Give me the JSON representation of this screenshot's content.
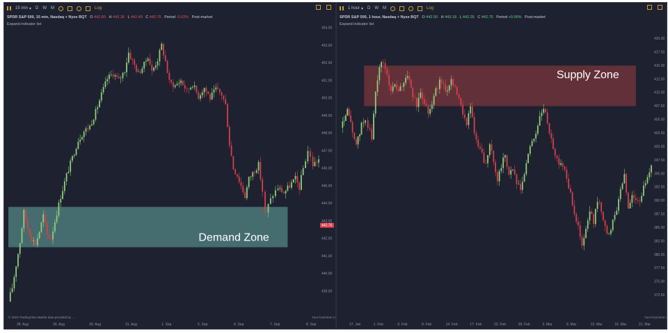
{
  "chart_data": [
    {
      "type": "candlestick",
      "title": "SPDR S&P 500, 15 min, Nasdaq + Nyse BQT",
      "toolbar": {
        "interval": "15 min",
        "periods": [
          "D",
          "W",
          "M"
        ],
        "log": "Log"
      },
      "ohlc": {
        "o_label": "O",
        "o": "442.80",
        "h_label": "H",
        "h": "443.18",
        "l_label": "L",
        "l": "442.49",
        "c_label": "C",
        "c": "442.75",
        "period_label": "Period",
        "period": "-0.02%",
        "session": "Post-market"
      },
      "expand_label": "Expand indicator list",
      "ylim": [
        438,
        454
      ],
      "y_ticks": [
        "454.00",
        "453.00",
        "452.00",
        "451.00",
        "450.00",
        "449.00",
        "448.00",
        "447.00",
        "446.00",
        "445.00",
        "444.00",
        "443.00",
        "442.00",
        "441.00",
        "440.00",
        "439.00"
      ],
      "x_ticks": [
        "28. Aug",
        "29. Aug",
        "30. Aug",
        "31. Aug",
        "1. Sep",
        "5. Sep",
        "6. Sep",
        "7. Sep",
        "8. Sep"
      ],
      "last_price": "442.75",
      "zone": {
        "label": "Demand Zone",
        "y_low": 441.5,
        "y_high": 443.8,
        "x_start": 0.0,
        "x_end": 7.2,
        "color": "#5f9e9a"
      },
      "footer_left": "© 2023 TradingView Market data provided by ...",
      "footer_right": "Your local time zone",
      "path": [
        [
          0,
          438.4
        ],
        [
          0.1,
          439.2
        ],
        [
          0.2,
          440.5
        ],
        [
          0.3,
          441.8
        ],
        [
          0.4,
          443.5
        ],
        [
          0.5,
          442.6
        ],
        [
          0.6,
          442.0
        ],
        [
          0.7,
          441.7
        ],
        [
          0.8,
          442.4
        ],
        [
          0.9,
          443.3
        ],
        [
          1.0,
          442.2
        ],
        [
          1.1,
          442.0
        ],
        [
          1.2,
          443.0
        ],
        [
          1.35,
          444.4
        ],
        [
          1.5,
          445.6
        ],
        [
          1.65,
          446.6
        ],
        [
          1.8,
          447.6
        ],
        [
          1.95,
          448.1
        ],
        [
          2.1,
          448.4
        ],
        [
          2.25,
          449.2
        ],
        [
          2.4,
          450.2
        ],
        [
          2.55,
          451.1
        ],
        [
          2.7,
          451.4
        ],
        [
          2.85,
          451.0
        ],
        [
          3.0,
          451.6
        ],
        [
          3.1,
          452.6
        ],
        [
          3.2,
          452.1
        ],
        [
          3.35,
          451.4
        ],
        [
          3.5,
          451.9
        ],
        [
          3.6,
          452.4
        ],
        [
          3.7,
          451.5
        ],
        [
          3.85,
          452.2
        ],
        [
          3.95,
          453.0
        ],
        [
          4.05,
          452.1
        ],
        [
          4.15,
          450.9
        ],
        [
          4.3,
          450.7
        ],
        [
          4.45,
          451.0
        ],
        [
          4.6,
          450.4
        ],
        [
          4.75,
          450.8
        ],
        [
          4.9,
          450.1
        ],
        [
          5.05,
          450.6
        ],
        [
          5.2,
          450.0
        ],
        [
          5.35,
          450.5
        ],
        [
          5.5,
          450.2
        ],
        [
          5.6,
          449.6
        ],
        [
          5.7,
          447.4
        ],
        [
          5.8,
          446.0
        ],
        [
          5.9,
          445.6
        ],
        [
          6.0,
          445.0
        ],
        [
          6.1,
          444.4
        ],
        [
          6.2,
          445.4
        ],
        [
          6.35,
          445.9
        ],
        [
          6.45,
          446.2
        ],
        [
          6.55,
          444.7
        ],
        [
          6.62,
          443.4
        ],
        [
          6.7,
          443.9
        ],
        [
          6.82,
          444.5
        ],
        [
          6.95,
          444.9
        ],
        [
          7.1,
          444.6
        ],
        [
          7.25,
          445.0
        ],
        [
          7.4,
          445.4
        ],
        [
          7.5,
          444.9
        ],
        [
          7.6,
          446.0
        ],
        [
          7.72,
          447.0
        ],
        [
          7.85,
          446.2
        ],
        [
          8.0,
          446.5
        ]
      ]
    },
    {
      "type": "candlestick",
      "title": "SPDR S&P 500, 1 hour, Nasdaq + Nyse BQT",
      "toolbar": {
        "interval": "1 hour",
        "periods": [
          "D",
          "W",
          "M"
        ],
        "log": "Log"
      },
      "ohlc": {
        "o_label": "O",
        "o": "442.50",
        "h_label": "H",
        "h": "443.18",
        "l_label": "L",
        "l": "442.26",
        "c_label": "C",
        "c": "442.75",
        "period_label": "Period",
        "period": "+0.06%",
        "session": "Post-market"
      },
      "expand_label": "Expand indicator list",
      "ylim": [
        370,
        422
      ],
      "y_ticks": [
        "420.00",
        "417.50",
        "415.00",
        "412.50",
        "410.00",
        "407.50",
        "405.00",
        "402.50",
        "400.00",
        "397.50",
        "395.00",
        "392.50",
        "390.00",
        "387.50",
        "385.00",
        "382.50",
        "380.00",
        "377.50",
        "375.00",
        "372.50"
      ],
      "x_ticks": [
        "27. Jan",
        "1. Feb",
        "6. Feb",
        "9. Feb",
        "14. Feb",
        "17. Feb",
        "23. Feb",
        "28. Feb",
        "3. Mar",
        "8. Mar",
        "13. Mar",
        "16. Mar",
        "21. Mar"
      ],
      "zone": {
        "label": "Supply Zone",
        "y_low": 407.5,
        "y_high": 415,
        "x_start": 0.9,
        "x_end": 11.5,
        "color": "#8f3a40"
      },
      "footer_right": "Your local time zone",
      "path": [
        [
          0,
          403.5
        ],
        [
          0.25,
          406.5
        ],
        [
          0.45,
          403.0
        ],
        [
          0.6,
          400.0
        ],
        [
          0.8,
          404.0
        ],
        [
          0.95,
          405.0
        ],
        [
          1.05,
          404.0
        ],
        [
          1.2,
          401.5
        ],
        [
          1.35,
          410.0
        ],
        [
          1.5,
          415.0
        ],
        [
          1.65,
          415.5
        ],
        [
          1.8,
          413.0
        ],
        [
          1.95,
          410.5
        ],
        [
          2.1,
          411.5
        ],
        [
          2.25,
          410.0
        ],
        [
          2.45,
          412.0
        ],
        [
          2.6,
          413.5
        ],
        [
          2.8,
          409.5
        ],
        [
          2.95,
          407.5
        ],
        [
          3.1,
          410.0
        ],
        [
          3.25,
          408.5
        ],
        [
          3.4,
          406.5
        ],
        [
          3.55,
          408.0
        ],
        [
          3.7,
          410.5
        ],
        [
          3.85,
          412.0
        ],
        [
          4.0,
          411.0
        ],
        [
          4.15,
          410.5
        ],
        [
          4.3,
          412.5
        ],
        [
          4.45,
          411.0
        ],
        [
          4.6,
          408.5
        ],
        [
          4.75,
          406.5
        ],
        [
          4.9,
          404.5
        ],
        [
          5.05,
          407.5
        ],
        [
          5.2,
          402.5
        ],
        [
          5.35,
          400.0
        ],
        [
          5.5,
          398.5
        ],
        [
          5.65,
          396.5
        ],
        [
          5.8,
          400.0
        ],
        [
          5.95,
          397.5
        ],
        [
          6.1,
          394.0
        ],
        [
          6.25,
          396.5
        ],
        [
          6.4,
          398.5
        ],
        [
          6.55,
          395.0
        ],
        [
          6.7,
          396.0
        ],
        [
          6.85,
          393.0
        ],
        [
          7.0,
          392.0
        ],
        [
          7.15,
          395.0
        ],
        [
          7.3,
          398.5
        ],
        [
          7.45,
          401.0
        ],
        [
          7.6,
          402.5
        ],
        [
          7.75,
          405.5
        ],
        [
          7.9,
          407.0
        ],
        [
          8.05,
          404.5
        ],
        [
          8.2,
          401.5
        ],
        [
          8.35,
          398.5
        ],
        [
          8.5,
          397.0
        ],
        [
          8.65,
          396.5
        ],
        [
          8.8,
          394.5
        ],
        [
          8.95,
          391.0
        ],
        [
          9.1,
          388.0
        ],
        [
          9.25,
          385.0
        ],
        [
          9.4,
          381.5
        ],
        [
          9.55,
          384.5
        ],
        [
          9.7,
          388.0
        ],
        [
          9.85,
          386.0
        ],
        [
          10.0,
          390.0
        ],
        [
          10.15,
          388.5
        ],
        [
          10.3,
          385.0
        ],
        [
          10.45,
          383.5
        ],
        [
          10.6,
          386.5
        ],
        [
          10.75,
          388.5
        ],
        [
          10.9,
          392.5
        ],
        [
          11.05,
          394.5
        ],
        [
          11.2,
          388.5
        ],
        [
          11.35,
          391.0
        ],
        [
          11.5,
          390.5
        ],
        [
          11.65,
          389.5
        ],
        [
          11.8,
          392.5
        ],
        [
          11.95,
          394.5
        ],
        [
          12.1,
          396.0
        ]
      ]
    }
  ]
}
